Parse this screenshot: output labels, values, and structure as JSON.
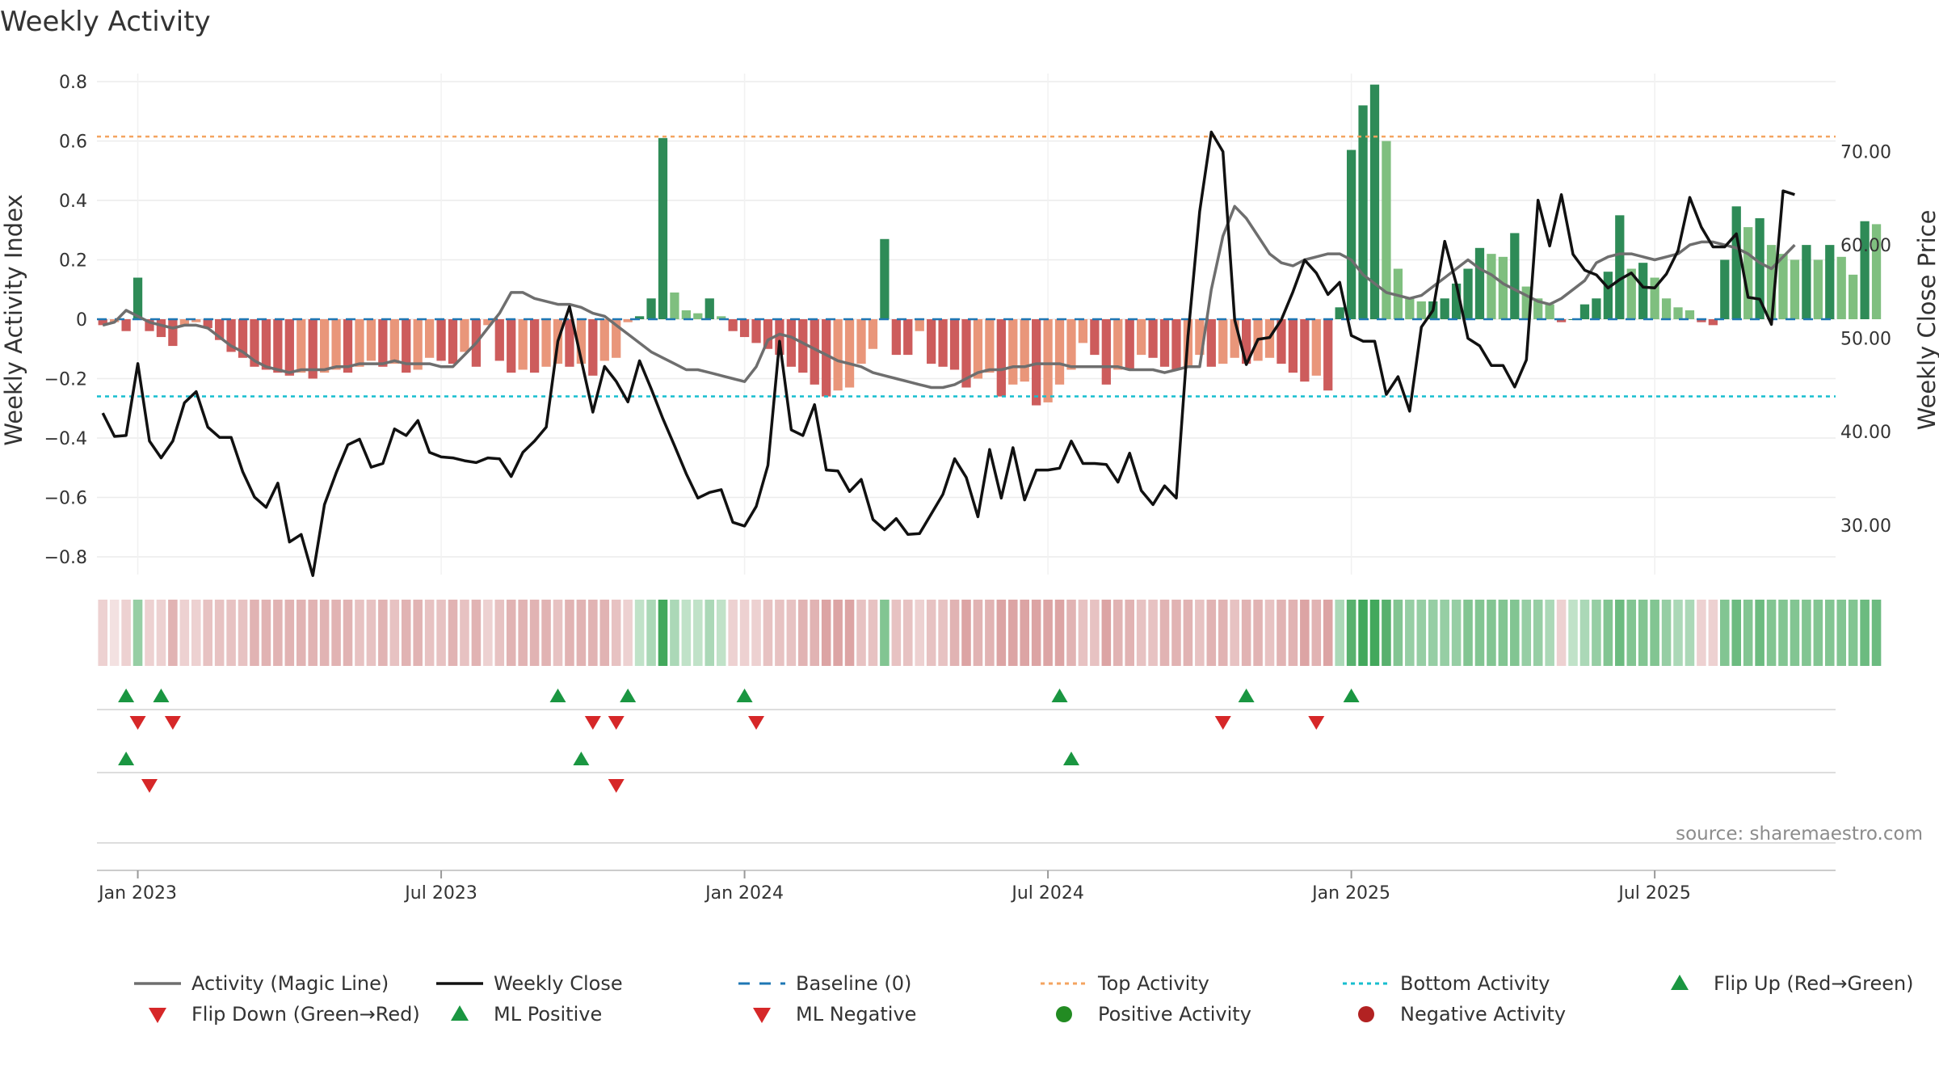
{
  "colors": {
    "pos_strong": "#2e8b57",
    "pos_light": "#7fbf7f",
    "neg_strong": "#cd5c5c",
    "neg_light": "#e9967a",
    "magic": "#6e6e6e",
    "close": "#111111",
    "baseline": "#1f77b4",
    "top": "#f4a460",
    "bottom": "#17becf",
    "flip_up": "#1a9641",
    "flip_down": "#d62728",
    "pos_dot": "#228b22",
    "neg_dot": "#b22222"
  },
  "chart_data": {
    "type": "bar+line",
    "title": "Weekly Activity",
    "ylabel": "Weekly Activity Index",
    "y2label": "Weekly Close Price",
    "ylim": [
      -0.85,
      0.8
    ],
    "y2lim": [
      24.7,
      77.5
    ],
    "y_ticks": [
      "0.8",
      "0.6",
      "0.4",
      "0.2",
      "0",
      "−0.2",
      "−0.4",
      "−0.6",
      "−0.8"
    ],
    "y_tick_values": [
      0.8,
      0.6,
      0.4,
      0.2,
      0,
      -0.2,
      -0.4,
      -0.6,
      -0.8
    ],
    "y2_ticks": [
      "70.00",
      "60.00",
      "50.00",
      "40.00",
      "30.00"
    ],
    "y2_tick_values": [
      70,
      60,
      50,
      40,
      30
    ],
    "x_ticks": [
      {
        "label": "Jan 2023",
        "week": 3
      },
      {
        "label": "Jul 2023",
        "week": 29
      },
      {
        "label": "Jan 2024",
        "week": 55
      },
      {
        "label": "Jul 2024",
        "week": 81
      },
      {
        "label": "Jan 2025",
        "week": 107
      },
      {
        "label": "Jul 2025",
        "week": 133
      }
    ],
    "weeks": 149,
    "top_activity": 0.615,
    "bottom_activity": -0.26,
    "activity": [
      -0.02,
      -0.01,
      -0.04,
      0.14,
      -0.04,
      -0.06,
      -0.09,
      -0.02,
      -0.01,
      -0.03,
      -0.07,
      -0.11,
      -0.13,
      -0.16,
      -0.17,
      -0.18,
      -0.19,
      -0.18,
      -0.2,
      -0.18,
      -0.17,
      -0.18,
      -0.16,
      -0.14,
      -0.16,
      -0.15,
      -0.18,
      -0.17,
      -0.13,
      -0.14,
      -0.15,
      -0.11,
      -0.16,
      -0.02,
      -0.14,
      -0.18,
      -0.17,
      -0.18,
      -0.16,
      -0.15,
      -0.16,
      -0.15,
      -0.19,
      -0.14,
      -0.13,
      -0.01,
      0.01,
      0.07,
      0.61,
      0.09,
      0.03,
      0.02,
      0.07,
      0.01,
      -0.04,
      -0.06,
      -0.08,
      -0.1,
      -0.12,
      -0.16,
      -0.18,
      -0.22,
      -0.26,
      -0.24,
      -0.23,
      -0.15,
      -0.1,
      0.27,
      -0.12,
      -0.12,
      -0.04,
      -0.15,
      -0.16,
      -0.17,
      -0.23,
      -0.2,
      -0.18,
      -0.26,
      -0.22,
      -0.21,
      -0.29,
      -0.28,
      -0.22,
      -0.17,
      -0.08,
      -0.12,
      -0.22,
      -0.17,
      -0.17,
      -0.12,
      -0.13,
      -0.16,
      -0.17,
      -0.16,
      -0.12,
      -0.16,
      -0.15,
      -0.13,
      -0.15,
      -0.14,
      -0.13,
      -0.15,
      -0.18,
      -0.21,
      -0.19,
      -0.24,
      0.04,
      0.57,
      0.72,
      0.79,
      0.6,
      0.17,
      0.07,
      0.06,
      0.06,
      0.07,
      0.12,
      0.17,
      0.24,
      0.22,
      0.21,
      0.29,
      0.11,
      0.07,
      0.05,
      -0.01,
      0.0,
      0.05,
      0.07,
      0.16,
      0.35,
      0.17,
      0.19,
      0.14,
      0.07,
      0.04,
      0.03,
      -0.01,
      -0.02,
      0.2,
      0.38,
      0.31,
      0.34,
      0.25,
      0.22,
      0.2,
      0.25,
      0.2,
      0.25,
      0.21,
      0.15,
      0.33,
      0.32
    ],
    "magic_line": [
      -0.02,
      -0.01,
      0.03,
      0.01,
      -0.01,
      -0.02,
      -0.03,
      -0.02,
      -0.02,
      -0.03,
      -0.06,
      -0.09,
      -0.11,
      -0.14,
      -0.16,
      -0.17,
      -0.18,
      -0.17,
      -0.17,
      -0.17,
      -0.16,
      -0.16,
      -0.15,
      -0.15,
      -0.15,
      -0.14,
      -0.15,
      -0.15,
      -0.15,
      -0.16,
      -0.16,
      -0.12,
      -0.08,
      -0.03,
      0.02,
      0.09,
      0.09,
      0.07,
      0.06,
      0.05,
      0.05,
      0.04,
      0.02,
      0.01,
      -0.02,
      -0.05,
      -0.08,
      -0.11,
      -0.13,
      -0.15,
      -0.17,
      -0.17,
      -0.18,
      -0.19,
      -0.2,
      -0.21,
      -0.16,
      -0.07,
      -0.05,
      -0.06,
      -0.08,
      -0.1,
      -0.12,
      -0.14,
      -0.15,
      -0.16,
      -0.18,
      -0.19,
      -0.2,
      -0.21,
      -0.22,
      -0.23,
      -0.23,
      -0.22,
      -0.2,
      -0.18,
      -0.17,
      -0.17,
      -0.16,
      -0.16,
      -0.15,
      -0.15,
      -0.15,
      -0.16,
      -0.16,
      -0.16,
      -0.16,
      -0.16,
      -0.17,
      -0.17,
      -0.17,
      -0.18,
      -0.17,
      -0.16,
      -0.16,
      0.1,
      0.28,
      0.38,
      0.34,
      0.28,
      0.22,
      0.19,
      0.18,
      0.2,
      0.21,
      0.22,
      0.22,
      0.2,
      0.15,
      0.12,
      0.09,
      0.08,
      0.07,
      0.08,
      0.11,
      0.14,
      0.17,
      0.2,
      0.17,
      0.15,
      0.12,
      0.1,
      0.08,
      0.06,
      0.05,
      0.07,
      0.1,
      0.13,
      0.19,
      0.21,
      0.22,
      0.22,
      0.21,
      0.2,
      0.21,
      0.22,
      0.25,
      0.26,
      0.26,
      0.25,
      0.24,
      0.22,
      0.19,
      0.17,
      0.21,
      0.25
    ],
    "weekly_close": [
      42.0,
      39.5,
      39.6,
      47.3,
      39.0,
      37.2,
      39.0,
      43.1,
      44.3,
      40.5,
      39.4,
      39.4,
      35.7,
      33.0,
      31.9,
      34.5,
      28.2,
      29.0,
      24.6,
      32.2,
      35.6,
      38.6,
      39.2,
      36.2,
      36.6,
      40.3,
      39.6,
      41.2,
      37.8,
      37.3,
      37.2,
      36.9,
      36.7,
      37.2,
      37.1,
      35.2,
      37.8,
      39.0,
      40.5,
      49.7,
      53.4,
      47.7,
      42.1,
      47.0,
      45.4,
      43.2,
      47.6,
      44.6,
      41.4,
      38.5,
      35.5,
      32.9,
      33.5,
      33.8,
      30.3,
      29.9,
      32.0,
      36.4,
      49.7,
      40.2,
      39.6,
      42.9,
      35.9,
      35.8,
      33.6,
      34.9,
      30.6,
      29.5,
      30.7,
      29.0,
      29.1,
      31.2,
      33.3,
      37.1,
      35.1,
      30.9,
      38.1,
      32.9,
      38.3,
      32.7,
      35.9,
      35.9,
      36.1,
      39.0,
      36.6,
      36.6,
      36.5,
      34.6,
      37.7,
      33.7,
      32.2,
      34.2,
      32.9,
      50.2,
      63.6,
      72.1,
      70.0,
      52.0,
      47.2,
      49.9,
      50.1,
      52.0,
      55.0,
      58.4,
      57.0,
      54.7,
      56.0,
      50.3,
      49.7,
      49.7,
      44.0,
      45.9,
      42.2,
      51.2,
      53.0,
      60.4,
      55.8,
      50.0,
      49.2,
      47.1,
      47.1,
      44.8,
      47.7,
      64.8,
      59.9,
      65.4,
      59.0,
      57.3,
      56.8,
      55.4,
      56.3,
      57.0,
      55.5,
      55.4,
      56.9,
      59.4,
      65.1,
      61.9,
      59.8,
      59.8,
      61.2,
      54.4,
      54.2,
      51.5,
      65.8,
      65.4
    ]
  },
  "strip_opacity": [
    0.3,
    0.2,
    0.3,
    0.5,
    0.3,
    0.3,
    0.5,
    0.3,
    0.3,
    0.4,
    0.4,
    0.4,
    0.4,
    0.5,
    0.5,
    0.5,
    0.5,
    0.5,
    0.5,
    0.5,
    0.5,
    0.5,
    0.4,
    0.4,
    0.5,
    0.4,
    0.5,
    0.5,
    0.4,
    0.4,
    0.5,
    0.4,
    0.5,
    0.3,
    0.4,
    0.5,
    0.5,
    0.5,
    0.5,
    0.4,
    0.5,
    0.5,
    0.5,
    0.5,
    0.4,
    0.3,
    0.3,
    0.4,
    0.9,
    0.4,
    0.3,
    0.3,
    0.4,
    0.3,
    0.3,
    0.3,
    0.3,
    0.4,
    0.4,
    0.4,
    0.5,
    0.5,
    0.6,
    0.6,
    0.6,
    0.4,
    0.4,
    0.6,
    0.4,
    0.4,
    0.3,
    0.4,
    0.4,
    0.5,
    0.6,
    0.5,
    0.5,
    0.6,
    0.6,
    0.6,
    0.6,
    0.6,
    0.6,
    0.5,
    0.4,
    0.4,
    0.6,
    0.5,
    0.5,
    0.4,
    0.4,
    0.5,
    0.5,
    0.5,
    0.4,
    0.5,
    0.5,
    0.4,
    0.5,
    0.5,
    0.4,
    0.5,
    0.5,
    0.6,
    0.5,
    0.6,
    0.4,
    0.8,
    0.9,
    0.9,
    0.8,
    0.6,
    0.5,
    0.5,
    0.5,
    0.5,
    0.5,
    0.6,
    0.6,
    0.6,
    0.6,
    0.6,
    0.5,
    0.5,
    0.4,
    0.3,
    0.3,
    0.4,
    0.5,
    0.6,
    0.7,
    0.6,
    0.6,
    0.6,
    0.5,
    0.4,
    0.4,
    0.3,
    0.3,
    0.6,
    0.7,
    0.6,
    0.7,
    0.6,
    0.6,
    0.6,
    0.6,
    0.6,
    0.6,
    0.6,
    0.6,
    0.7,
    0.7
  ],
  "markers": {
    "flip_up": [
      2,
      5,
      39,
      45,
      55,
      82,
      98,
      107
    ],
    "flip_down": [
      3,
      6,
      42,
      44,
      56,
      96,
      104
    ],
    "ml_positive": [
      2,
      41,
      83
    ],
    "ml_negative": [
      4,
      44
    ]
  },
  "source": "source: sharemaestro.com",
  "legend": [
    {
      "label": "Activity (Magic Line)",
      "kind": "line",
      "color": "#6e6e6e"
    },
    {
      "label": "Weekly Close",
      "kind": "line",
      "color": "#111111"
    },
    {
      "label": "Baseline (0)",
      "kind": "dash",
      "color": "#1f77b4"
    },
    {
      "label": "Top Activity",
      "kind": "dot",
      "color": "#f4a460"
    },
    {
      "label": "Bottom Activity",
      "kind": "dot",
      "color": "#17becf"
    },
    {
      "label": "Flip Up (Red→Green)",
      "kind": "up",
      "color": "#1a9641"
    },
    {
      "label": "Flip Down (Green→Red)",
      "kind": "down",
      "color": "#d62728"
    },
    {
      "label": "ML Positive",
      "kind": "up",
      "color": "#1a9641"
    },
    {
      "label": "ML Negative",
      "kind": "down",
      "color": "#d62728"
    },
    {
      "label": "Positive Activity",
      "kind": "circle",
      "color": "#228b22"
    },
    {
      "label": "Negative Activity",
      "kind": "circle",
      "color": "#b22222"
    }
  ]
}
